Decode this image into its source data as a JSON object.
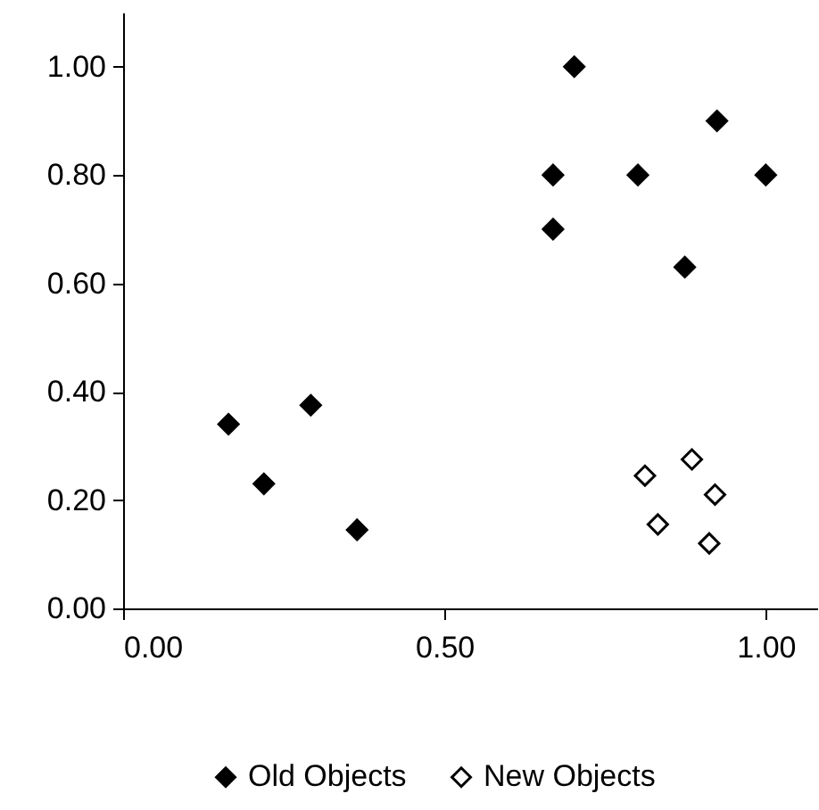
{
  "chart_data": {
    "type": "scatter",
    "marker": "diamond",
    "legend": "bottom",
    "grid": false,
    "xlim": [
      0,
      1.08
    ],
    "ylim": [
      0,
      1.1
    ],
    "xticks": [
      {
        "value": 0,
        "label": "0.00"
      },
      {
        "value": 0.5,
        "label": "0.50"
      },
      {
        "value": 1,
        "label": "1.00"
      }
    ],
    "yticks": [
      {
        "value": 0,
        "label": "0.00"
      },
      {
        "value": 0.2,
        "label": "0.20"
      },
      {
        "value": 0.4,
        "label": "0.40"
      },
      {
        "value": 0.6,
        "label": "0.60"
      },
      {
        "value": 0.8,
        "label": "0.80"
      },
      {
        "value": 1,
        "label": "1.00"
      }
    ],
    "series": [
      {
        "name": "Old Objects",
        "color": "#000000",
        "x": [
          0.164,
          0.219,
          0.292,
          0.364,
          0.669,
          0.669,
          0.702,
          0.801,
          0.874,
          0.924,
          1.0
        ],
        "values": [
          0.34,
          0.23,
          0.375,
          0.145,
          0.8,
          0.7,
          1.0,
          0.8,
          0.63,
          0.9,
          0.8
        ]
      },
      {
        "name": "New Objects",
        "color": "#ffffff",
        "x": [
          0.812,
          0.832,
          0.885,
          0.921,
          0.912
        ],
        "values": [
          0.245,
          0.155,
          0.275,
          0.21,
          0.12
        ]
      }
    ]
  }
}
